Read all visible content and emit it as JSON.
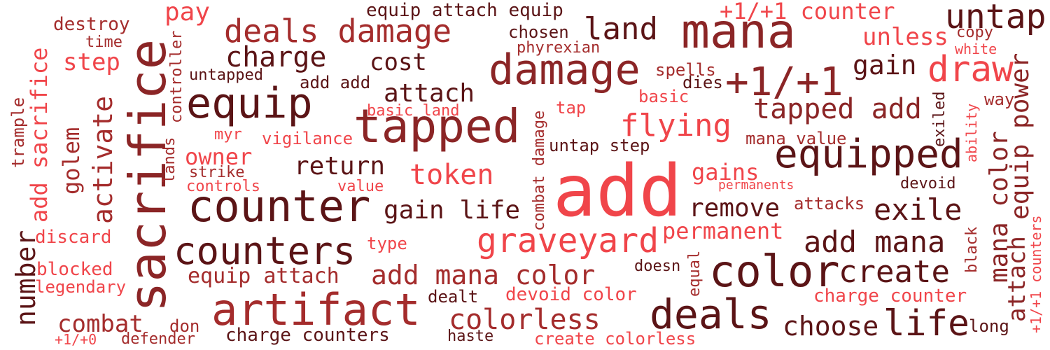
{
  "palette": {
    "background": "#ffffff",
    "red": "#f0454a",
    "crimson": "#a42c2c",
    "maroon": "#8b2526",
    "dark": "#5b1416"
  },
  "words": [
    {
      "text": "add",
      "color": "red"
    },
    {
      "text": "sacrifice",
      "color": "maroon"
    },
    {
      "text": "tapped",
      "color": "maroon"
    },
    {
      "text": "mana",
      "color": "maroon"
    },
    {
      "text": "damage",
      "color": "maroon"
    },
    {
      "text": "counter",
      "color": "dark"
    },
    {
      "text": "artifact",
      "color": "crimson"
    },
    {
      "text": "color",
      "color": "dark"
    },
    {
      "text": "equip",
      "color": "dark"
    },
    {
      "text": "counters",
      "color": "dark"
    },
    {
      "text": "deals",
      "color": "dark"
    },
    {
      "text": "graveyard",
      "color": "red"
    },
    {
      "text": "deals damage",
      "color": "crimson"
    },
    {
      "text": "equipped",
      "color": "dark"
    },
    {
      "text": "+1/+1",
      "color": "maroon"
    },
    {
      "text": "draw",
      "color": "red"
    },
    {
      "text": "untap",
      "color": "dark"
    },
    {
      "text": "life",
      "color": "dark"
    },
    {
      "text": "land",
      "color": "dark"
    },
    {
      "text": "flying",
      "color": "red"
    },
    {
      "text": "create",
      "color": "dark"
    },
    {
      "text": "add mana color",
      "color": "crimson"
    },
    {
      "text": "exile",
      "color": "dark"
    },
    {
      "text": "add mana",
      "color": "dark"
    },
    {
      "text": "charge",
      "color": "dark"
    },
    {
      "text": "tapped add",
      "color": "maroon"
    },
    {
      "text": "token",
      "color": "red"
    },
    {
      "text": "colorless",
      "color": "crimson"
    },
    {
      "text": "choose",
      "color": "dark"
    },
    {
      "text": "return",
      "color": "dark"
    },
    {
      "text": "gain life",
      "color": "dark"
    },
    {
      "text": "remove",
      "color": "dark"
    },
    {
      "text": "permanent",
      "color": "red"
    },
    {
      "text": "attach",
      "color": "dark"
    },
    {
      "text": "combat",
      "color": "crimson"
    },
    {
      "text": "+1/+1 counter",
      "color": "red"
    },
    {
      "text": "unless",
      "color": "red"
    },
    {
      "text": "gain",
      "color": "dark"
    },
    {
      "text": "cost",
      "color": "dark"
    },
    {
      "text": "pay",
      "color": "red"
    },
    {
      "text": "step",
      "color": "red"
    },
    {
      "text": "owner",
      "color": "red"
    },
    {
      "text": "gains",
      "color": "red"
    },
    {
      "text": "equip attach",
      "color": "crimson"
    },
    {
      "text": "number",
      "color": "dark"
    },
    {
      "text": "activate",
      "color": "crimson"
    },
    {
      "text": "add sacrifice",
      "color": "red"
    },
    {
      "text": "golem",
      "color": "crimson"
    },
    {
      "text": "mana color",
      "color": "maroon"
    },
    {
      "text": "equip power",
      "color": "maroon"
    },
    {
      "text": "attach",
      "color": "maroon"
    },
    {
      "text": "charge counter",
      "color": "red"
    },
    {
      "text": "equip attach equip",
      "color": "dark"
    },
    {
      "text": "chosen",
      "color": "dark"
    },
    {
      "text": "destroy",
      "color": "crimson"
    },
    {
      "text": "discard",
      "color": "red"
    },
    {
      "text": "blocked",
      "color": "red"
    },
    {
      "text": "legendary",
      "color": "red"
    },
    {
      "text": "devoid color",
      "color": "red"
    },
    {
      "text": "create colorless",
      "color": "red"
    },
    {
      "text": "charge counters",
      "color": "dark"
    },
    {
      "text": "attacks",
      "color": "crimson"
    },
    {
      "text": "untap step",
      "color": "dark"
    },
    {
      "text": "vigilance",
      "color": "red"
    },
    {
      "text": "add add",
      "color": "dark"
    },
    {
      "text": "mana value",
      "color": "crimson"
    },
    {
      "text": "spells",
      "color": "crimson"
    },
    {
      "text": "dies",
      "color": "dark"
    },
    {
      "text": "phyrexian",
      "color": "crimson"
    },
    {
      "text": "untapped",
      "color": "dark"
    },
    {
      "text": "time",
      "color": "crimson"
    },
    {
      "text": "basic land",
      "color": "red"
    },
    {
      "text": "basic",
      "color": "red"
    },
    {
      "text": "tap",
      "color": "red"
    },
    {
      "text": "myr",
      "color": "red"
    },
    {
      "text": "strike",
      "color": "crimson"
    },
    {
      "text": "controls",
      "color": "red"
    },
    {
      "text": "value",
      "color": "red"
    },
    {
      "text": "type",
      "color": "red"
    },
    {
      "text": "doesn",
      "color": "dark"
    },
    {
      "text": "dealt",
      "color": "dark"
    },
    {
      "text": "haste",
      "color": "dark"
    },
    {
      "text": "don",
      "color": "crimson"
    },
    {
      "text": "+1/+0",
      "color": "red"
    },
    {
      "text": "defender",
      "color": "crimson"
    },
    {
      "text": "devoid",
      "color": "dark"
    },
    {
      "text": "permanents",
      "color": "red"
    },
    {
      "text": "long",
      "color": "dark"
    },
    {
      "text": "copy",
      "color": "crimson"
    },
    {
      "text": "white",
      "color": "red"
    },
    {
      "text": "way",
      "color": "crimson"
    },
    {
      "text": "trample",
      "color": "crimson"
    },
    {
      "text": "controller",
      "color": "crimson"
    },
    {
      "text": "lands",
      "color": "crimson"
    },
    {
      "text": "combat damage",
      "color": "crimson"
    },
    {
      "text": "equal",
      "color": "crimson"
    },
    {
      "text": "exiled",
      "color": "dark"
    },
    {
      "text": "ability",
      "color": "red"
    },
    {
      "text": "black",
      "color": "crimson"
    },
    {
      "text": "+1/+1 counters",
      "color": "red"
    }
  ]
}
